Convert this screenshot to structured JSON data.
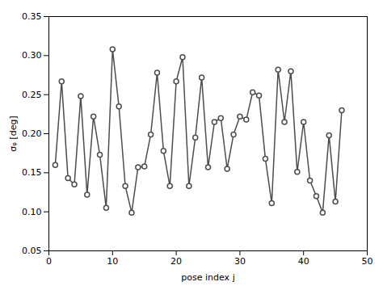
{
  "chart_data": {
    "type": "line",
    "xlabel": "pose index j",
    "ylabel": "σᵩ [deg]",
    "x": [
      1,
      2,
      3,
      4,
      5,
      6,
      7,
      8,
      9,
      10,
      11,
      12,
      13,
      14,
      15,
      16,
      17,
      18,
      19,
      20,
      21,
      22,
      23,
      24,
      25,
      26,
      27,
      28,
      29,
      30,
      31,
      32,
      33,
      34,
      35,
      36,
      37,
      38,
      39,
      40,
      41,
      42,
      43,
      44,
      45,
      46
    ],
    "values": [
      0.16,
      0.267,
      0.143,
      0.135,
      0.248,
      0.122,
      0.222,
      0.173,
      0.105,
      0.308,
      0.235,
      0.133,
      0.099,
      0.157,
      0.158,
      0.199,
      0.278,
      0.178,
      0.133,
      0.267,
      0.298,
      0.133,
      0.195,
      0.272,
      0.157,
      0.215,
      0.22,
      0.155,
      0.199,
      0.222,
      0.218,
      0.253,
      0.249,
      0.168,
      0.111,
      0.282,
      0.215,
      0.28,
      0.151,
      0.215,
      0.14,
      0.12,
      0.099,
      0.198,
      0.113,
      0.23
    ],
    "color": "#4d4d4d",
    "marker": "circle",
    "xlim": [
      0,
      50
    ],
    "ylim": [
      0.05,
      0.35
    ],
    "xticks": [
      0,
      10,
      20,
      30,
      40,
      50
    ],
    "yticks": [
      0.05,
      {
        "value": 0.1,
        "label": "0.10"
      },
      0.15,
      {
        "value": 0.2,
        "label": "0.20"
      },
      0.25,
      {
        "value": 0.3,
        "label": "0.30"
      },
      0.35
    ],
    "grid": false
  }
}
